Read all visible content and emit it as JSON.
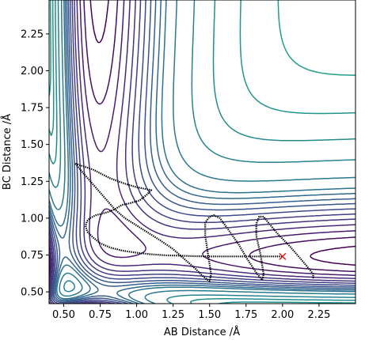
{
  "chart_data": {
    "type": "contour",
    "xlabel": "AB Distance /Å",
    "ylabel": "BC Distance /Å",
    "xlim": [
      0.4,
      2.5
    ],
    "ylim": [
      0.42,
      2.48
    ],
    "x_ticks": [
      "0.50",
      "0.75",
      "1.00",
      "1.25",
      "1.50",
      "1.75",
      "2.00",
      "2.25"
    ],
    "x_tick_values": [
      0.5,
      0.75,
      1.0,
      1.25,
      1.5,
      1.75,
      2.0,
      2.25
    ],
    "y_ticks": [
      "0.50",
      "0.75",
      "1.00",
      "1.25",
      "1.50",
      "1.75",
      "2.00",
      "2.25"
    ],
    "y_tick_values": [
      0.5,
      0.75,
      1.0,
      1.25,
      1.5,
      1.75,
      2.0,
      2.25
    ],
    "colormap": [
      "#440154",
      "#482878",
      "#3e4989",
      "#31688e",
      "#26828e",
      "#1f9e89",
      "#35b779",
      "#6ece58",
      "#b5de2b",
      "#fde725"
    ],
    "contour_levels": [
      0.0,
      0.017,
      0.033,
      0.05,
      0.067,
      0.083,
      0.1,
      0.117,
      0.133,
      0.15,
      0.167,
      0.2,
      0.25,
      0.3,
      0.35,
      0.4,
      0.45,
      0.5,
      0.55,
      0.6,
      0.65,
      0.7,
      0.75,
      0.8,
      0.85,
      0.9,
      0.95,
      1.0
    ],
    "trajectory": {
      "color": "#000000",
      "points": [
        [
          0.58,
          1.37
        ],
        [
          0.7,
          1.33
        ],
        [
          0.82,
          1.27
        ],
        [
          0.93,
          1.23
        ],
        [
          1.0,
          1.21
        ],
        [
          1.05,
          1.2
        ],
        [
          1.1,
          1.19
        ],
        [
          1.07,
          1.16
        ],
        [
          1.02,
          1.12
        ],
        [
          0.95,
          1.1
        ],
        [
          0.9,
          1.09
        ],
        [
          0.85,
          1.06
        ],
        [
          0.8,
          1.04
        ],
        [
          0.76,
          1.03
        ],
        [
          0.72,
          1.02
        ],
        [
          0.68,
          1.0
        ],
        [
          0.66,
          0.98
        ],
        [
          0.65,
          0.95
        ],
        [
          0.66,
          0.91
        ],
        [
          0.7,
          0.87
        ],
        [
          0.75,
          0.83
        ],
        [
          0.82,
          0.8
        ],
        [
          0.9,
          0.78
        ],
        [
          1.0,
          0.765
        ],
        [
          1.1,
          0.755
        ],
        [
          1.2,
          0.748
        ],
        [
          1.3,
          0.745
        ],
        [
          1.4,
          0.742
        ],
        [
          1.5,
          0.74
        ],
        [
          1.6,
          0.74
        ],
        [
          1.7,
          0.74
        ],
        [
          1.8,
          0.74
        ],
        [
          1.9,
          0.74
        ],
        [
          2.0,
          0.74
        ]
      ],
      "points_b": [
        [
          0.58,
          1.37
        ],
        [
          0.63,
          1.31
        ],
        [
          0.7,
          1.23
        ],
        [
          0.78,
          1.14
        ],
        [
          0.85,
          1.06
        ],
        [
          0.92,
          1.0
        ],
        [
          1.0,
          0.95
        ],
        [
          1.08,
          0.9
        ],
        [
          1.16,
          0.85
        ],
        [
          1.25,
          0.79
        ],
        [
          1.33,
          0.72
        ],
        [
          1.4,
          0.66
        ],
        [
          1.45,
          0.61
        ],
        [
          1.5,
          0.57
        ],
        [
          1.51,
          0.62
        ],
        [
          1.49,
          0.75
        ],
        [
          1.47,
          0.88
        ],
        [
          1.47,
          0.97
        ],
        [
          1.5,
          1.01
        ],
        [
          1.53,
          1.02
        ],
        [
          1.57,
          1.0
        ],
        [
          1.63,
          0.92
        ],
        [
          1.7,
          0.82
        ],
        [
          1.76,
          0.72
        ],
        [
          1.82,
          0.63
        ],
        [
          1.86,
          0.58
        ],
        [
          1.87,
          0.62
        ],
        [
          1.85,
          0.75
        ],
        [
          1.82,
          0.88
        ],
        [
          1.82,
          0.96
        ],
        [
          1.84,
          1.01
        ],
        [
          1.87,
          1.01
        ],
        [
          1.91,
          0.96
        ],
        [
          1.97,
          0.89
        ],
        [
          2.04,
          0.82
        ],
        [
          2.11,
          0.74
        ],
        [
          2.17,
          0.67
        ],
        [
          2.21,
          0.62
        ],
        [
          2.21,
          0.59
        ]
      ]
    },
    "end_marker": {
      "x": 2.0,
      "y": 0.74,
      "color": "#e31a1c",
      "shape": "x"
    }
  }
}
